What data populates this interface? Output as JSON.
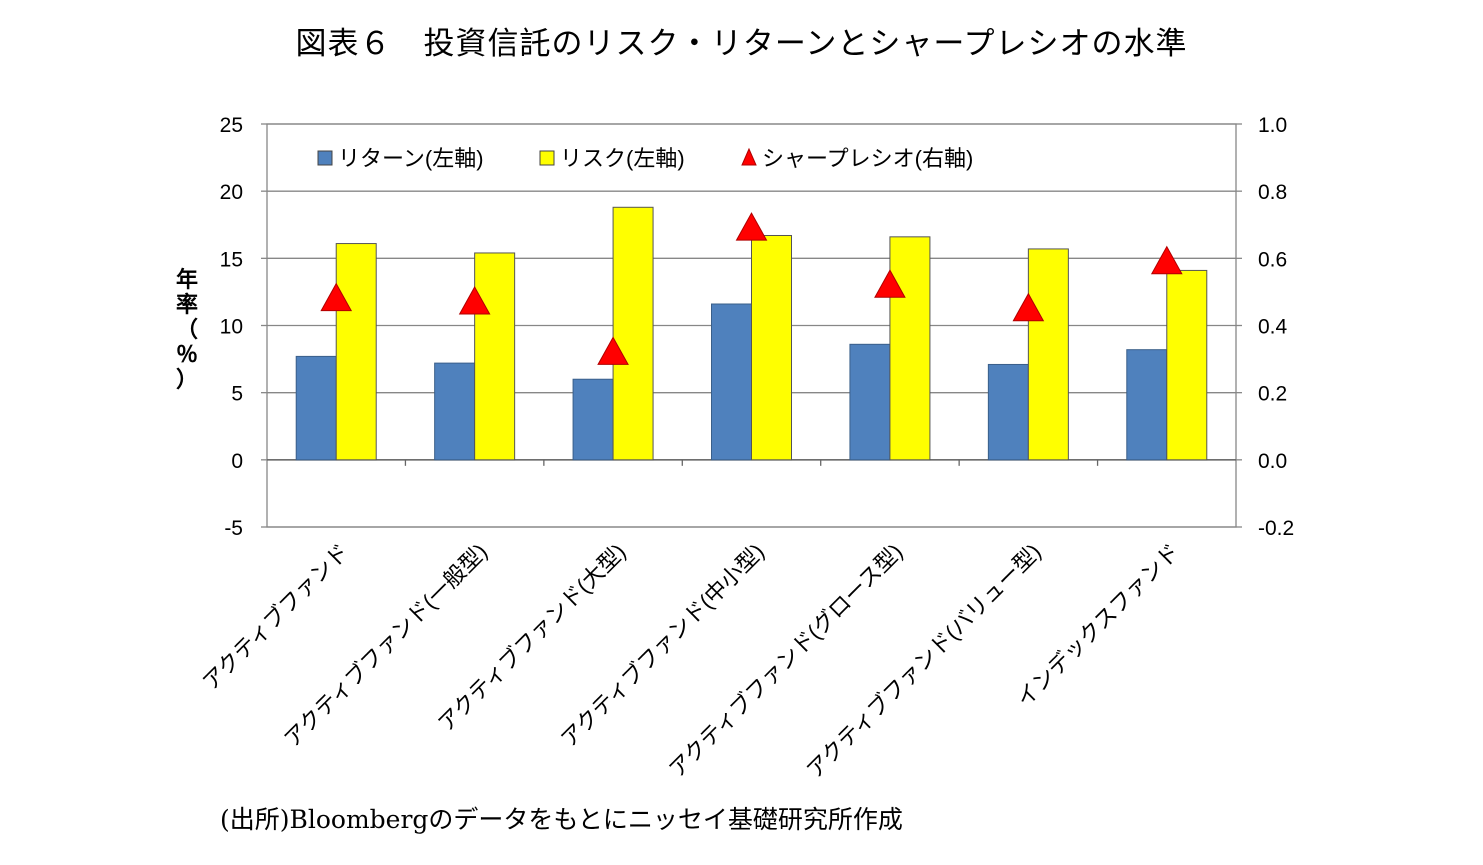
{
  "title": "図表６　投資信託のリスク・リターンとシャープレシオの水準",
  "source": "(出所)Bloombergのデータをもとにニッセイ基礎研究所作成",
  "colors": {
    "return_bar": "#4F81BD",
    "risk_bar": "#FFFF00",
    "sharpe_marker": "#FF0000",
    "gridline": "#878787"
  },
  "chart_data": {
    "type": "bar",
    "categories": [
      "アクティブファンド",
      "アクティブファンド(一般型)",
      "アクティブファンド(大型)",
      "アクティブファンド(中小型)",
      "アクティブファンド(グロース型)",
      "アクティブファンド(バリュー型)",
      "インデックスファンド"
    ],
    "series": [
      {
        "name": "リターン(左軸)",
        "kind": "bar",
        "axis": "left",
        "values": [
          7.7,
          7.2,
          6.0,
          11.6,
          8.6,
          7.1,
          8.2
        ]
      },
      {
        "name": "リスク(左軸)",
        "kind": "bar",
        "axis": "left",
        "values": [
          16.1,
          15.4,
          18.8,
          16.7,
          16.6,
          15.7,
          14.1
        ]
      },
      {
        "name": "シャープレシオ(右軸)",
        "kind": "marker",
        "axis": "right",
        "values": [
          0.48,
          0.47,
          0.32,
          0.69,
          0.52,
          0.45,
          0.59
        ]
      }
    ],
    "ylabel": "年率（％）",
    "ylim": [
      -5,
      25
    ],
    "yticks": [
      "25",
      "20",
      "15",
      "10",
      "5",
      "0",
      "-5"
    ],
    "y2lim": [
      -0.2,
      1.0
    ],
    "y2ticks": [
      "1.0",
      "0.8",
      "0.6",
      "0.4",
      "0.2",
      "0.0",
      "-0.2"
    ],
    "grid": true,
    "legend_position": "top-left-inside"
  }
}
